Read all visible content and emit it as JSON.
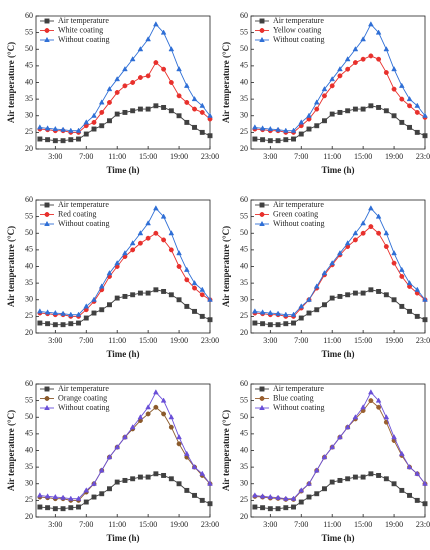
{
  "chart_data": [
    {
      "type": "line",
      "xlabel": "Time (h)",
      "ylabel": "Air temperature (°C)",
      "legend": "upper left",
      "x": [
        1,
        2,
        3,
        4,
        5,
        6,
        7,
        8,
        9,
        10,
        11,
        12,
        13,
        14,
        15,
        16,
        17,
        18,
        19,
        20,
        21,
        22,
        23
      ],
      "xlim": [
        0.5,
        23
      ],
      "xticks": [
        {
          "value": 3,
          "label": "3:00"
        },
        {
          "value": 7,
          "label": "7:00"
        },
        {
          "value": 11,
          "label": "11:00"
        },
        {
          "value": 15,
          "label": "15:00"
        },
        {
          "value": 19,
          "label": "19:00"
        },
        {
          "value": 23,
          "label": "23:00"
        }
      ],
      "ylim": [
        20,
        60
      ],
      "yticks": [
        20,
        25,
        30,
        35,
        40,
        45,
        50,
        55,
        60
      ],
      "series": [
        {
          "name": "Air temperature",
          "color": "#404040",
          "marker": "square",
          "values": [
            23,
            22.8,
            22.5,
            22.5,
            22.8,
            23,
            24.5,
            26,
            27,
            28.5,
            30.5,
            31,
            31.5,
            32,
            32,
            33,
            32.5,
            31.5,
            30,
            28,
            26.5,
            25,
            24
          ]
        },
        {
          "name": "White coating",
          "color": "#e8302c",
          "marker": "circle",
          "values": [
            26,
            25.8,
            25.5,
            25.5,
            25,
            25,
            27,
            28,
            31,
            34,
            37,
            39,
            40,
            41.5,
            42,
            46,
            44,
            40,
            36,
            34,
            32,
            31,
            29
          ]
        },
        {
          "name": "Without coating",
          "color": "#2f6fd6",
          "marker": "triangle",
          "values": [
            26.5,
            26.2,
            26,
            25.8,
            25.5,
            25.5,
            28,
            30,
            34,
            38,
            41,
            44,
            47,
            50,
            53,
            57.5,
            55,
            50,
            44,
            39,
            35,
            33,
            30
          ]
        }
      ]
    },
    {
      "type": "line",
      "xlabel": "Time (h)",
      "ylabel": "Air temperature (°C)",
      "legend": "upper left",
      "x": [
        1,
        2,
        3,
        4,
        5,
        6,
        7,
        8,
        9,
        10,
        11,
        12,
        13,
        14,
        15,
        16,
        17,
        18,
        19,
        20,
        21,
        22,
        23
      ],
      "xlim": [
        0.5,
        23
      ],
      "xticks": [
        {
          "value": 3,
          "label": "3:00"
        },
        {
          "value": 7,
          "label": "7:00"
        },
        {
          "value": 11,
          "label": "11:00"
        },
        {
          "value": 15,
          "label": "15:00"
        },
        {
          "value": 19,
          "label": "19:00"
        },
        {
          "value": 23,
          "label": "23:00"
        }
      ],
      "ylim": [
        20,
        60
      ],
      "yticks": [
        20,
        25,
        30,
        35,
        40,
        45,
        50,
        55,
        60
      ],
      "series": [
        {
          "name": "Air temperature",
          "color": "#404040",
          "marker": "square",
          "values": [
            23,
            22.8,
            22.5,
            22.5,
            22.8,
            23,
            24.5,
            26,
            27,
            28.5,
            30.5,
            31,
            31.5,
            32,
            32,
            33,
            32.5,
            31.5,
            30,
            28,
            26.5,
            25,
            24
          ]
        },
        {
          "name": "Yellow coating",
          "color": "#e8302c",
          "marker": "circle",
          "values": [
            26,
            25.8,
            25.5,
            25.5,
            25,
            25,
            27,
            29,
            32,
            36,
            39,
            42,
            44,
            46,
            47,
            48,
            47,
            43,
            38,
            35,
            33,
            31,
            29.5
          ]
        },
        {
          "name": "Without coating",
          "color": "#2f6fd6",
          "marker": "triangle",
          "values": [
            26.5,
            26.2,
            26,
            25.8,
            25.5,
            25.5,
            28,
            30,
            34,
            38,
            41,
            44,
            47,
            50,
            53,
            57.5,
            55,
            50,
            44,
            39,
            35,
            33,
            30
          ]
        }
      ]
    },
    {
      "type": "line",
      "xlabel": "Time (h)",
      "ylabel": "Air temperature (°C)",
      "legend": "upper left",
      "x": [
        1,
        2,
        3,
        4,
        5,
        6,
        7,
        8,
        9,
        10,
        11,
        12,
        13,
        14,
        15,
        16,
        17,
        18,
        19,
        20,
        21,
        22,
        23
      ],
      "xlim": [
        0.5,
        23
      ],
      "xticks": [
        {
          "value": 3,
          "label": "3:00"
        },
        {
          "value": 7,
          "label": "7:00"
        },
        {
          "value": 11,
          "label": "11:00"
        },
        {
          "value": 15,
          "label": "15:00"
        },
        {
          "value": 19,
          "label": "19:00"
        },
        {
          "value": 23,
          "label": "23:00"
        }
      ],
      "ylim": [
        20,
        60
      ],
      "yticks": [
        20,
        25,
        30,
        35,
        40,
        45,
        50,
        55,
        60
      ],
      "series": [
        {
          "name": "Air temperature",
          "color": "#404040",
          "marker": "square",
          "values": [
            23,
            22.8,
            22.5,
            22.5,
            22.8,
            23,
            24.5,
            26,
            27,
            28.5,
            30.5,
            31,
            31.5,
            32,
            32,
            33,
            32.5,
            31.5,
            30,
            28,
            26.5,
            25,
            24
          ]
        },
        {
          "name": "Red coating",
          "color": "#e8302c",
          "marker": "circle",
          "values": [
            26,
            25.8,
            25.5,
            25.5,
            25,
            25,
            27,
            29.5,
            33,
            37,
            40,
            43,
            45,
            47,
            48.5,
            50,
            48,
            45,
            40,
            36,
            33.5,
            31.5,
            30
          ]
        },
        {
          "name": "Without coating",
          "color": "#2f6fd6",
          "marker": "triangle",
          "values": [
            26.5,
            26.2,
            26,
            25.8,
            25.5,
            25.5,
            28,
            30,
            34,
            38,
            41,
            44,
            47,
            50,
            53,
            57.5,
            55,
            50,
            44,
            39,
            35,
            33,
            30
          ]
        }
      ]
    },
    {
      "type": "line",
      "xlabel": "Time (h)",
      "ylabel": "Air temperature (°C)",
      "legend": "upper left",
      "x": [
        1,
        2,
        3,
        4,
        5,
        6,
        7,
        8,
        9,
        10,
        11,
        12,
        13,
        14,
        15,
        16,
        17,
        18,
        19,
        20,
        21,
        22,
        23
      ],
      "xlim": [
        0.5,
        23
      ],
      "xticks": [
        {
          "value": 3,
          "label": "3:00"
        },
        {
          "value": 7,
          "label": "7:00"
        },
        {
          "value": 11,
          "label": "11:00"
        },
        {
          "value": 15,
          "label": "15:00"
        },
        {
          "value": 19,
          "label": "19:00"
        },
        {
          "value": 23,
          "label": "23:00"
        }
      ],
      "ylim": [
        20,
        60
      ],
      "yticks": [
        20,
        25,
        30,
        35,
        40,
        45,
        50,
        55,
        60
      ],
      "series": [
        {
          "name": "Air temperature",
          "color": "#404040",
          "marker": "square",
          "values": [
            23,
            22.8,
            22.5,
            22.5,
            22.8,
            23,
            24.5,
            26,
            27,
            28.5,
            30.5,
            31,
            31.5,
            32,
            32,
            33,
            32.5,
            31.5,
            30,
            28,
            26.5,
            25,
            24
          ]
        },
        {
          "name": "Green coating",
          "color": "#e8302c",
          "marker": "circle",
          "values": [
            26,
            25.8,
            25.5,
            25.5,
            25,
            25,
            27.5,
            30,
            33.5,
            37.5,
            40.5,
            43.5,
            46,
            48,
            50,
            52,
            50,
            46,
            41,
            37,
            34,
            32,
            30
          ]
        },
        {
          "name": "Without coating",
          "color": "#2f6fd6",
          "marker": "triangle",
          "values": [
            26.5,
            26.2,
            26,
            25.8,
            25.5,
            25.5,
            28,
            30,
            34,
            38,
            41,
            44,
            47,
            50,
            53,
            57.5,
            55,
            50,
            44,
            39,
            35,
            33,
            30
          ]
        }
      ]
    },
    {
      "type": "line",
      "xlabel": "Time (h)",
      "ylabel": "Air temperature (°C)",
      "legend": "upper left",
      "x": [
        1,
        2,
        3,
        4,
        5,
        6,
        7,
        8,
        9,
        10,
        11,
        12,
        13,
        14,
        15,
        16,
        17,
        18,
        19,
        20,
        21,
        22,
        23
      ],
      "xlim": [
        0.5,
        23
      ],
      "xticks": [
        {
          "value": 3,
          "label": "3:00"
        },
        {
          "value": 7,
          "label": "7:00"
        },
        {
          "value": 11,
          "label": "11:00"
        },
        {
          "value": 15,
          "label": "15:00"
        },
        {
          "value": 19,
          "label": "19:00"
        },
        {
          "value": 23,
          "label": "23:00"
        }
      ],
      "ylim": [
        20,
        60
      ],
      "yticks": [
        20,
        25,
        30,
        35,
        40,
        45,
        50,
        55,
        60
      ],
      "series": [
        {
          "name": "Air temperature",
          "color": "#404040",
          "marker": "square",
          "values": [
            23,
            22.8,
            22.5,
            22.5,
            22.8,
            23,
            24.5,
            26,
            27,
            28.5,
            30.5,
            31,
            31.5,
            32,
            32,
            33,
            32.5,
            31.5,
            30,
            28,
            26.5,
            25,
            24
          ]
        },
        {
          "name": "Orange coating",
          "color": "#8b5a2b",
          "marker": "circle",
          "values": [
            26,
            25.8,
            25.5,
            25.5,
            25,
            25,
            27.5,
            30,
            34,
            38,
            41,
            44,
            46.5,
            49,
            51,
            53,
            51,
            47,
            42,
            38,
            35,
            32.5,
            30
          ]
        },
        {
          "name": "Without coating",
          "color": "#6a4fd8",
          "marker": "triangle",
          "values": [
            26.5,
            26.2,
            26,
            25.8,
            25.5,
            25.5,
            28,
            30,
            34,
            38,
            41,
            44,
            47,
            50,
            53,
            57.5,
            55,
            50,
            44,
            39,
            35,
            33,
            30
          ]
        }
      ]
    },
    {
      "type": "line",
      "xlabel": "Time (h)",
      "ylabel": "Air temperature (°C)",
      "legend": "upper left",
      "x": [
        1,
        2,
        3,
        4,
        5,
        6,
        7,
        8,
        9,
        10,
        11,
        12,
        13,
        14,
        15,
        16,
        17,
        18,
        19,
        20,
        21,
        22,
        23
      ],
      "xlim": [
        0.5,
        23
      ],
      "xticks": [
        {
          "value": 3,
          "label": "3:00"
        },
        {
          "value": 7,
          "label": "7:00"
        },
        {
          "value": 11,
          "label": "11:00"
        },
        {
          "value": 15,
          "label": "15:00"
        },
        {
          "value": 19,
          "label": "19:00"
        },
        {
          "value": 23,
          "label": "23:00"
        }
      ],
      "ylim": [
        20,
        60
      ],
      "yticks": [
        20,
        25,
        30,
        35,
        40,
        45,
        50,
        55,
        60
      ],
      "series": [
        {
          "name": "Air temperature",
          "color": "#404040",
          "marker": "square",
          "values": [
            23,
            22.8,
            22.5,
            22.5,
            22.8,
            23,
            24.5,
            26,
            27,
            28.5,
            30.5,
            31,
            31.5,
            32,
            32,
            33,
            32.5,
            31.5,
            30,
            28,
            26.5,
            25,
            24
          ]
        },
        {
          "name": "Blue coating",
          "color": "#9a6030",
          "marker": "circle",
          "values": [
            26.2,
            26,
            25.7,
            25.6,
            25.3,
            25.3,
            27.8,
            30,
            34,
            38,
            41,
            44,
            47,
            49.5,
            52,
            55,
            53,
            48.5,
            43,
            38.5,
            35,
            33,
            30
          ]
        },
        {
          "name": "Without coating",
          "color": "#6a4fd8",
          "marker": "triangle",
          "values": [
            26.5,
            26.2,
            26,
            25.8,
            25.5,
            25.5,
            28,
            30,
            34,
            38,
            41,
            44,
            47,
            50,
            53,
            57.5,
            55,
            50,
            44,
            39,
            35,
            33,
            30
          ]
        }
      ]
    }
  ]
}
